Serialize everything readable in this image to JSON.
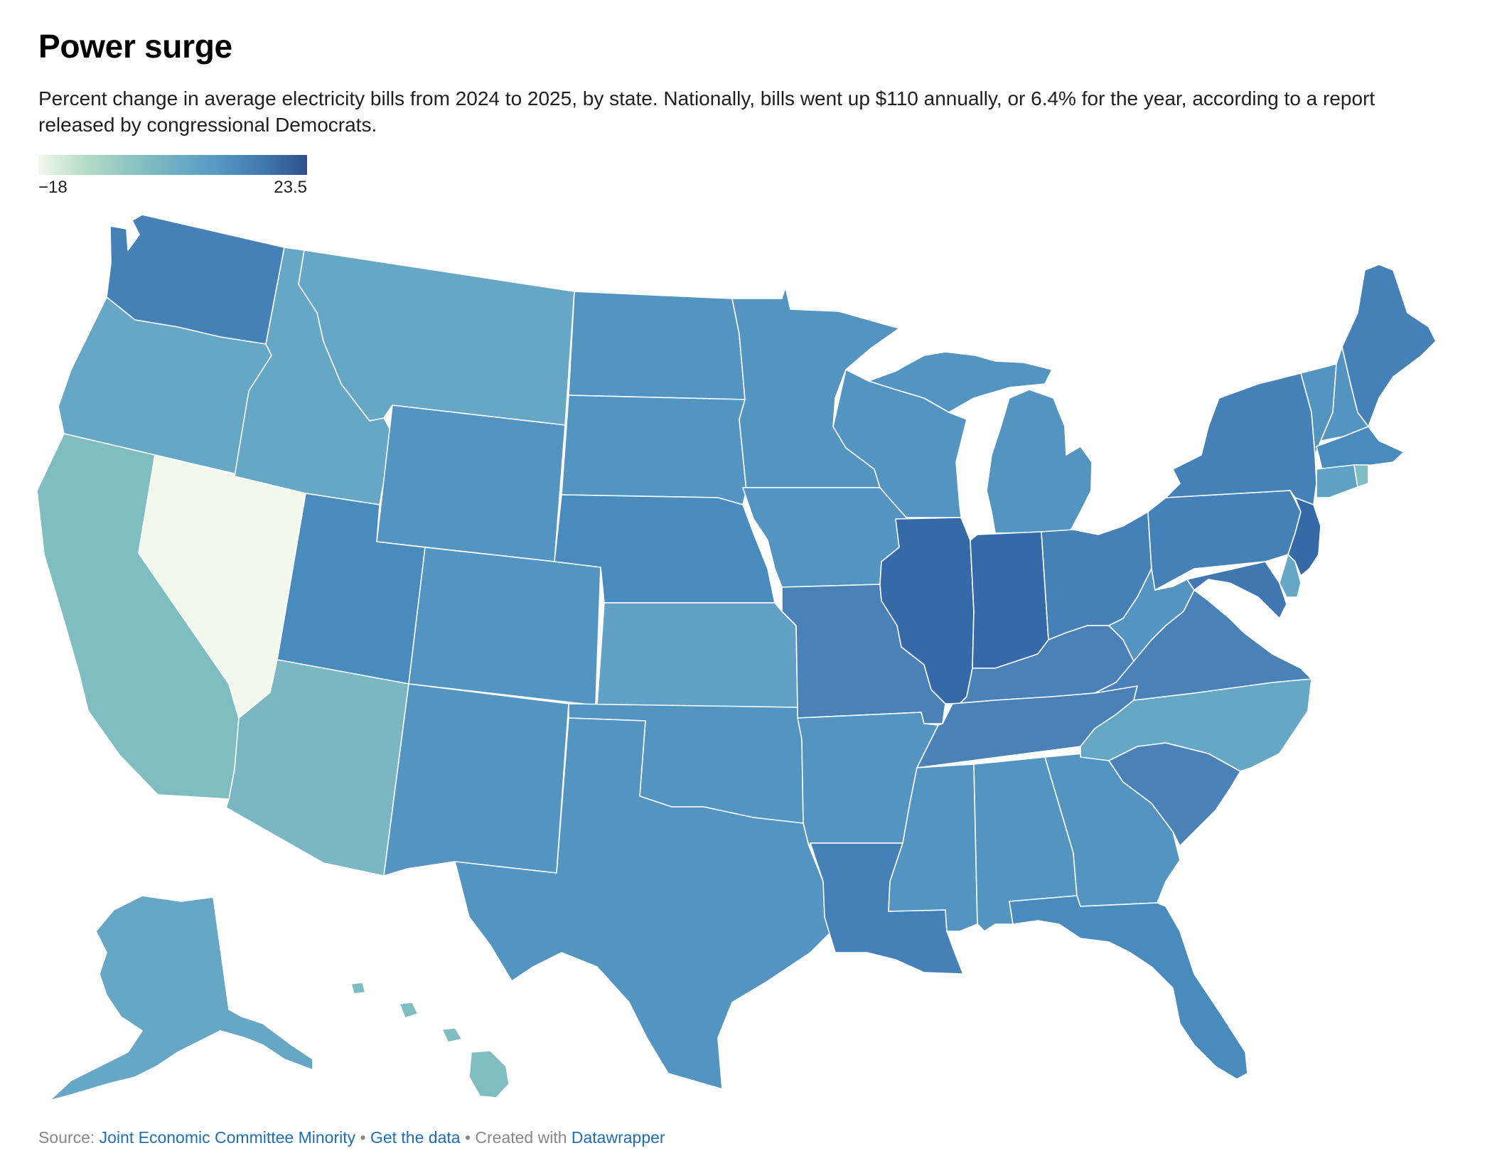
{
  "title": "Power surge",
  "subtitle": "Percent change in average electricity bills from 2024 to 2025, by state. Nationally, bills went up $110 annually, or 6.4% for the year, according to a report released by congressional Democrats.",
  "legend": {
    "min_label": "−18",
    "max_label": "23.5",
    "min": -18,
    "max": 23.5
  },
  "colors": {
    "lowest": "#f2f8ec",
    "teal": "#80bdc1",
    "light_blue": "#66a7c5",
    "mid_blue": "#5494c0",
    "blue": "#4581b7",
    "dark_blue": "#3569a8",
    "darkest": "#2f4f8e",
    "border": "#ffffff"
  },
  "footer": {
    "source_prefix": "Source:",
    "source_link": "Joint Economic Committee Minority",
    "sep1": "•",
    "data_link": "Get the data",
    "sep2": "• Created with",
    "tool_link": "Datawrapper"
  }
}
